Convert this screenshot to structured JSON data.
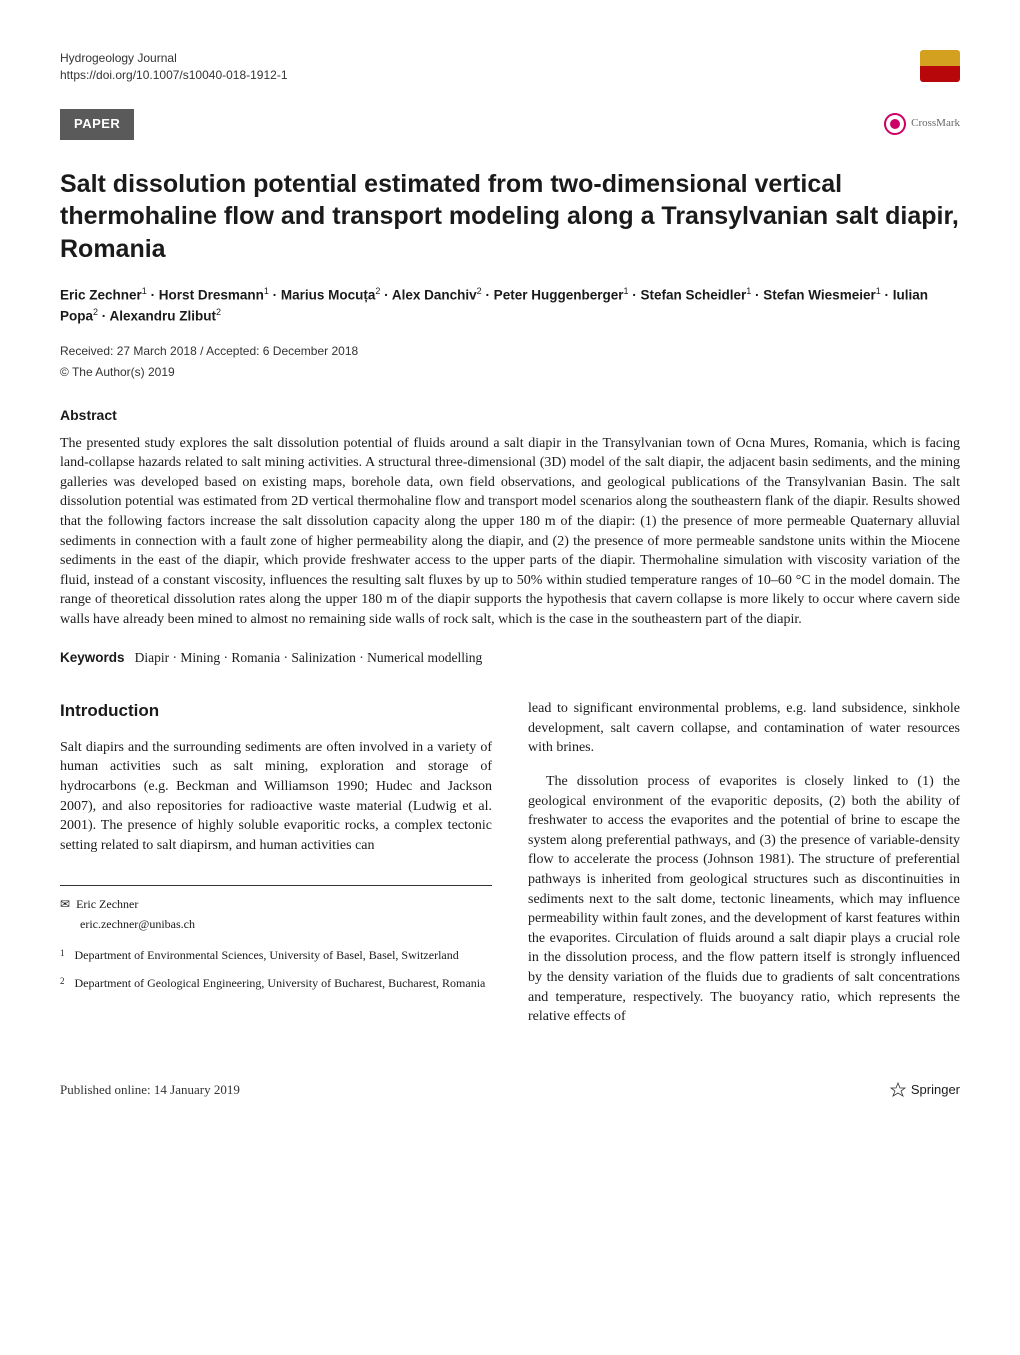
{
  "header": {
    "journal": "Hydrogeology Journal",
    "doi": "https://doi.org/10.1007/s10040-018-1912-1",
    "paper_badge": "PAPER",
    "crossmark": "CrossMark"
  },
  "title": "Salt dissolution potential estimated from two-dimensional vertical thermohaline flow and transport modeling along a Transylvanian salt diapir, Romania",
  "authors_html": "Eric Zechner<sup>1</sup> · Horst Dresmann<sup>1</sup> · Marius Mocuța<sup>2</sup> · Alex Danchiv<sup>2</sup> · Peter Huggenberger<sup>1</sup> · Stefan Scheidler<sup>1</sup> · Stefan Wiesmeier<sup>1</sup> · Iulian Popa<sup>2</sup> · Alexandru Zlibut<sup>2</sup>",
  "dates": "Received: 27 March 2018 / Accepted: 6 December 2018",
  "copyright": "© The Author(s) 2019",
  "abstract_heading": "Abstract",
  "abstract_text": "The presented study explores the salt dissolution potential of fluids around a salt diapir in the Transylvanian town of Ocna Mures, Romania, which is facing land-collapse hazards related to salt mining activities. A structural three-dimensional (3D) model of the salt diapir, the adjacent basin sediments, and the mining galleries was developed based on existing maps, borehole data, own field observations, and geological publications of the Transylvanian Basin. The salt dissolution potential was estimated from 2D vertical thermohaline flow and transport model scenarios along the southeastern flank of the diapir. Results showed that the following factors increase the salt dissolution capacity along the upper 180 m of the diapir: (1) the presence of more permeable Quaternary alluvial sediments in connection with a fault zone of higher permeability along the diapir, and (2) the presence of more permeable sandstone units within the Miocene sediments in the east of the diapir, which provide freshwater access to the upper parts of the diapir. Thermohaline simulation with viscosity variation of the fluid, instead of a constant viscosity, influences the resulting salt fluxes by up to 50% within studied temperature ranges of 10–60 °C in the model domain. The range of theoretical dissolution rates along the upper 180 m of the diapir supports the hypothesis that cavern collapse is more likely to occur where cavern side walls have already been mined to almost no remaining side walls of rock salt, which is the case in the southeastern part of the diapir.",
  "keywords_label": "Keywords",
  "keywords": "Diapir · Mining · Romania · Salinization · Numerical modelling",
  "intro_heading": "Introduction",
  "intro_para1": "Salt diapirs and the surrounding sediments are often involved in a variety of human activities such as salt mining, exploration and storage of hydrocarbons (e.g. Beckman and Williamson 1990; Hudec and Jackson 2007), and also repositories for radioactive waste material (Ludwig et al. 2001). The presence of highly soluble evaporitic rocks, a complex tectonic setting related to salt diapirsm, and human activities can",
  "right_para1": "lead to significant environmental problems, e.g. land subsidence, sinkhole development, salt cavern collapse, and contamination of water resources with brines.",
  "right_para2": "The dissolution process of evaporites is closely linked to (1) the geological environment of the evaporitic deposits, (2) both the ability of freshwater to access the evaporites and the potential of brine to escape the system along preferential pathways, and (3) the presence of variable-density flow to accelerate the process (Johnson 1981). The structure of preferential pathways is inherited from geological structures such as discontinuities in sediments next to the salt dome, tectonic lineaments, which may influence permeability within fault zones, and the development of karst features within the evaporites. Circulation of fluids around a salt diapir plays a crucial role in the dissolution process, and the flow pattern itself is strongly influenced by the density variation of the fluids due to gradients of salt concentrations and temperature, respectively. The buoyancy ratio, which represents the relative effects of",
  "corr": {
    "name": "Eric Zechner",
    "email": "eric.zechner@unibas.ch"
  },
  "affiliations": [
    {
      "num": "1",
      "text": "Department of Environmental Sciences, University of Basel, Basel, Switzerland"
    },
    {
      "num": "2",
      "text": "Department of Geological Engineering, University of Bucharest, Bucharest, Romania"
    }
  ],
  "footer": {
    "published": "Published online: 14 January 2019",
    "publisher": "Springer"
  },
  "colors": {
    "badge_bg": "#5a5a5a",
    "logo_top": "#d4a020",
    "logo_bottom": "#b8070a",
    "crossmark_ring": "#cc0066"
  }
}
